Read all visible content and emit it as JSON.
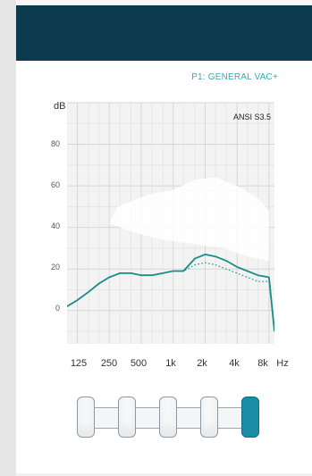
{
  "header": {
    "color": "#0b3a4f"
  },
  "program": {
    "label": "P1: GENERAL VAC+"
  },
  "graph": {
    "unit_label": "dB",
    "standard_label": "ANSI S3.5",
    "y_ticks": [
      "80",
      "60",
      "40",
      "20",
      "0"
    ],
    "x_ticks": [
      "125",
      "250",
      "500",
      "1k",
      "2k",
      "4k",
      "8k"
    ],
    "x_unit": "Hz"
  },
  "chart_data": {
    "type": "line",
    "x": [
      100,
      125,
      160,
      200,
      250,
      315,
      400,
      500,
      630,
      800,
      1000,
      1250,
      1600,
      2000,
      2500,
      3150,
      4000,
      5000,
      6300,
      8000,
      9000
    ],
    "series": [
      {
        "style": "solid",
        "color": "#1b8a8a",
        "values": [
          2,
          5,
          9,
          13,
          16,
          18,
          18,
          17,
          17,
          18,
          19,
          19,
          25,
          27,
          26,
          24,
          21,
          19,
          17,
          16,
          -10
        ]
      },
      {
        "style": "dotted",
        "color": "#1b8a8a",
        "values": [
          2,
          5,
          9,
          13,
          16,
          18,
          18,
          17,
          17,
          18,
          19,
          19,
          22,
          23,
          22,
          20,
          18,
          16,
          14,
          14,
          -10
        ]
      }
    ],
    "xlim": [
      100,
      9000
    ],
    "ylim": [
      -16,
      100
    ],
    "x_scale": "log",
    "grid": true
  },
  "sliders": {
    "count": 5,
    "active_index": 4,
    "active_color": "#1b8ea6"
  }
}
